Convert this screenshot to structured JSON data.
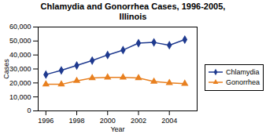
{
  "chart_data": {
    "type": "line",
    "title": "Chlamydia and Gonorrhea Cases, 1996-2005,\nIllinois",
    "xlabel": "Year",
    "ylabel": "Cases",
    "x": [
      1996,
      1997,
      1998,
      1999,
      2000,
      2001,
      2002,
      2003,
      2004,
      2005
    ],
    "series": [
      {
        "name": "Chlamydia",
        "color": "#1F3A8F",
        "marker": "diamond",
        "values": [
          26000,
          29000,
          32500,
          36000,
          40000,
          43500,
          48500,
          49000,
          47000,
          51000
        ]
      },
      {
        "name": "Gonorrhea",
        "color": "#E88020",
        "marker": "triangle",
        "values": [
          19000,
          19000,
          21500,
          23500,
          24000,
          24000,
          23500,
          21000,
          20000,
          19500
        ]
      }
    ],
    "xlim": [
      1995.5,
      2005.8
    ],
    "xticks": [
      1996,
      1998,
      2000,
      2002,
      2004
    ],
    "ylim": [
      0,
      60000
    ],
    "yticks": [
      0,
      {
        "value": 10000,
        "label": "10,000"
      },
      {
        "value": 20000,
        "label": "20,000"
      },
      {
        "value": 30000,
        "label": "30,000"
      },
      {
        "value": 40000,
        "label": "40,000"
      },
      {
        "value": 50000,
        "label": "50,000"
      },
      {
        "value": 60000,
        "label": "60,000"
      }
    ],
    "grid": false,
    "legend": "center right"
  }
}
